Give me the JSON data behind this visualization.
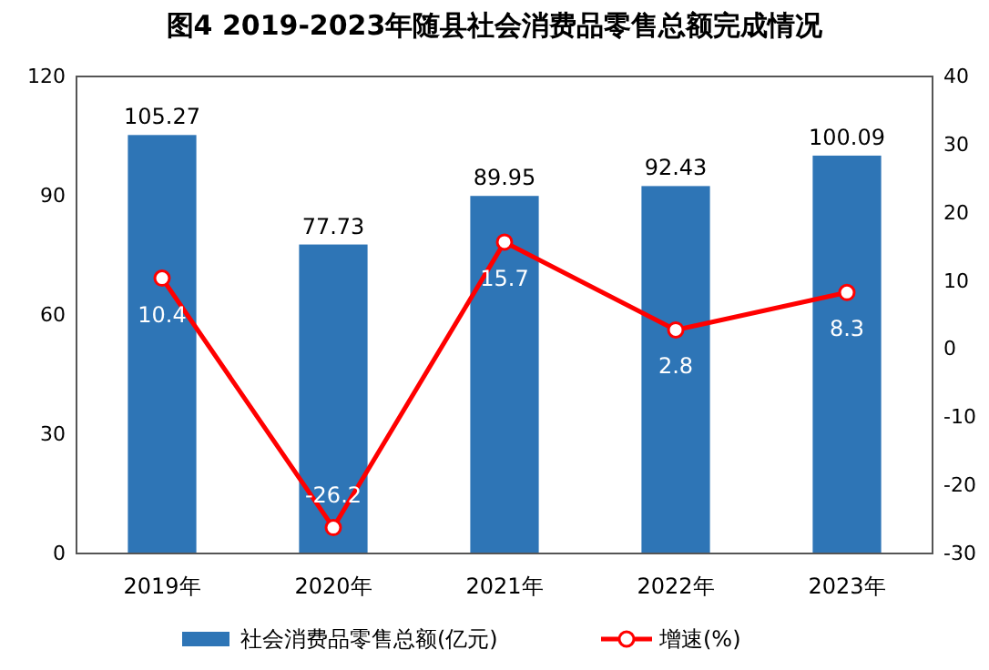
{
  "chart_data": {
    "type": "bar",
    "title": "图4  2019-2023年随县社会消费品零售总额完成情况",
    "categories": [
      "2019年",
      "2020年",
      "2021年",
      "2022年",
      "2023年"
    ],
    "series": [
      {
        "name": "社会消费品零售总额(亿元)",
        "color": "#2e75b6",
        "values": [
          105.27,
          77.73,
          89.95,
          92.43,
          100.09
        ]
      },
      {
        "name": "增速(%)",
        "type": "line",
        "axis": "y2",
        "color": "#ff0000",
        "values": [
          10.4,
          -26.2,
          15.7,
          2.8,
          8.3
        ]
      }
    ],
    "ylim": [
      0,
      120
    ],
    "yticks": [
      0,
      30,
      60,
      90,
      120
    ],
    "y2lim": [
      -30,
      40
    ],
    "y2ticks": [
      -30,
      -20,
      -10,
      0,
      10,
      20,
      30,
      40
    ],
    "data_labels": true,
    "legend": "bottom",
    "grid": false,
    "marker": "circle",
    "line_style": "solid"
  }
}
